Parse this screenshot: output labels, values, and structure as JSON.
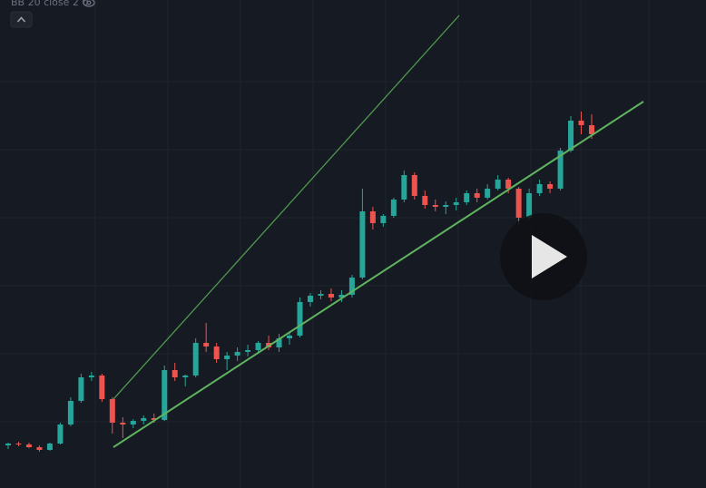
{
  "chart_data": {
    "type": "candlestick",
    "indicator_label": "BB 20 close 2 0",
    "categories": [
      null,
      null,
      null,
      null,
      null,
      null,
      null,
      null,
      null,
      null,
      null,
      null,
      null,
      null,
      null,
      null,
      null,
      null,
      null,
      null,
      null,
      null,
      null,
      null,
      null,
      null,
      null,
      null,
      null,
      null,
      null,
      null,
      null,
      null,
      null,
      null,
      null,
      null,
      null,
      null,
      null,
      null,
      null,
      null,
      null,
      null,
      null,
      null,
      null,
      null,
      null,
      null,
      null,
      null,
      null,
      null,
      null
    ],
    "open": [
      47,
      49,
      48,
      45,
      42,
      49,
      70,
      96,
      122,
      124,
      98,
      72,
      70,
      74,
      77,
      75,
      130,
      122,
      124,
      160,
      156,
      142,
      146,
      150,
      152,
      160,
      155,
      165,
      168,
      205,
      212,
      214,
      210,
      213,
      232,
      305,
      292,
      300,
      318,
      345,
      322,
      312,
      310,
      312,
      315,
      325,
      320,
      330,
      340,
      330,
      298,
      325,
      335,
      330,
      372,
      405,
      400
    ],
    "high": [
      50,
      51,
      50,
      47,
      50,
      72,
      100,
      126,
      128,
      126,
      100,
      78,
      76,
      80,
      82,
      135,
      138,
      125,
      165,
      182,
      160,
      150,
      155,
      158,
      162,
      168,
      170,
      172,
      210,
      215,
      218,
      220,
      218,
      235,
      330,
      310,
      302,
      320,
      350,
      348,
      328,
      318,
      316,
      320,
      328,
      330,
      335,
      345,
      342,
      332,
      330,
      340,
      338,
      375,
      410,
      415,
      412
    ],
    "low": [
      43,
      46,
      44,
      40,
      41,
      48,
      68,
      94,
      118,
      95,
      60,
      55,
      66,
      70,
      72,
      74,
      118,
      112,
      122,
      150,
      138,
      130,
      140,
      145,
      148,
      152,
      150,
      158,
      166,
      200,
      208,
      206,
      205,
      210,
      230,
      285,
      288,
      298,
      315,
      318,
      308,
      305,
      302,
      306,
      312,
      315,
      318,
      328,
      325,
      290,
      295,
      322,
      325,
      328,
      370,
      390,
      385
    ],
    "close": [
      49,
      48,
      45,
      42,
      49,
      70,
      96,
      122,
      124,
      98,
      72,
      70,
      74,
      77,
      75,
      130,
      122,
      124,
      160,
      156,
      142,
      146,
      150,
      152,
      160,
      155,
      165,
      168,
      205,
      212,
      214,
      210,
      213,
      232,
      305,
      292,
      300,
      318,
      345,
      322,
      312,
      310,
      312,
      315,
      325,
      320,
      330,
      340,
      330,
      298,
      325,
      335,
      330,
      372,
      405,
      400,
      390
    ],
    "ylim": [
      0,
      538
    ],
    "up_color": "#26a69a",
    "down_color": "#ef5350"
  }
}
